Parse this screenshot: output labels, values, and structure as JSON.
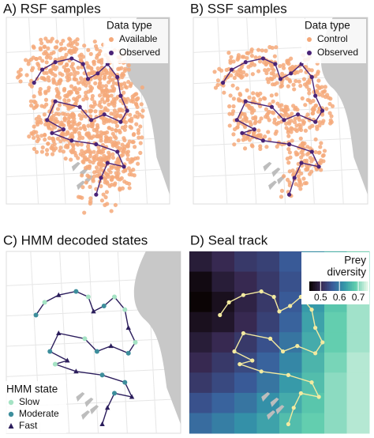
{
  "panels": [
    {
      "title": "A) RSF samples",
      "legend_title": "Data type",
      "legend": [
        {
          "label": "Available",
          "color": "#f4a97a"
        },
        {
          "label": "Observed",
          "color": "#4a2377"
        }
      ]
    },
    {
      "title": "B) SSF samples",
      "legend_title": "Data type",
      "legend": [
        {
          "label": "Control",
          "color": "#f4a97a"
        },
        {
          "label": "Observed",
          "color": "#4a2377"
        }
      ]
    },
    {
      "title": "C) HMM decoded states",
      "legend_title": "HMM state",
      "legend": [
        {
          "label": "Slow",
          "color": "#a5e3c4"
        },
        {
          "label": "Moderate",
          "color": "#3d8e9c"
        },
        {
          "label": "Fast",
          "color": "#2b1d5c"
        }
      ]
    },
    {
      "title": "D) Seal track",
      "legend_title": [
        "Prey",
        "diversity"
      ],
      "track_color": "#f3eaa0"
    }
  ],
  "track": {
    "x": [
      0.17,
      0.22,
      0.3,
      0.4,
      0.47,
      0.5,
      0.56,
      0.62,
      0.68,
      0.7,
      0.74,
      0.7,
      0.6,
      0.52,
      0.45,
      0.3,
      0.25,
      0.35,
      0.28,
      0.4,
      0.55,
      0.68,
      0.72,
      0.62,
      0.58,
      0.55
    ],
    "y": [
      0.35,
      0.28,
      0.24,
      0.22,
      0.25,
      0.33,
      0.3,
      0.25,
      0.32,
      0.42,
      0.5,
      0.56,
      0.52,
      0.55,
      0.48,
      0.45,
      0.55,
      0.6,
      0.62,
      0.66,
      0.68,
      0.72,
      0.8,
      0.78,
      0.86,
      0.95
    ]
  },
  "states": [
    "Moderate",
    "Slow",
    "Fast",
    "Moderate",
    "Slow",
    "Fast",
    "Moderate",
    "Slow",
    "Slow",
    "Fast",
    "Slow",
    "Moderate",
    "Fast",
    "Moderate",
    "Slow",
    "Fast",
    "Moderate",
    "Fast",
    "Slow",
    "Fast",
    "Moderate",
    "Moderate",
    "Fast",
    "Moderate",
    "Fast",
    "Fast"
  ],
  "heatmap": {
    "values": [
      [
        0.48,
        0.5,
        0.52,
        0.53,
        0.56,
        0.62,
        0.66,
        0.7
      ],
      [
        0.45,
        0.48,
        0.5,
        0.52,
        0.55,
        0.62,
        0.68,
        0.71
      ],
      [
        0.44,
        0.46,
        0.49,
        0.52,
        0.56,
        0.63,
        0.68,
        0.72
      ],
      [
        0.46,
        0.47,
        0.5,
        0.53,
        0.57,
        0.64,
        0.69,
        0.72
      ],
      [
        0.48,
        0.5,
        0.52,
        0.55,
        0.59,
        0.65,
        0.69,
        0.72
      ],
      [
        0.5,
        0.52,
        0.54,
        0.57,
        0.61,
        0.66,
        0.7,
        0.73
      ],
      [
        0.52,
        0.54,
        0.56,
        0.59,
        0.63,
        0.67,
        0.71,
        0.73
      ],
      [
        0.55,
        0.57,
        0.59,
        0.62,
        0.65,
        0.68,
        0.71,
        0.73
      ],
      [
        0.58,
        0.6,
        0.62,
        0.64,
        0.67,
        0.69,
        0.71,
        0.73
      ]
    ],
    "clim": [
      0.44,
      0.75
    ],
    "ticks": [
      0.5,
      0.6,
      0.7
    ]
  }
}
